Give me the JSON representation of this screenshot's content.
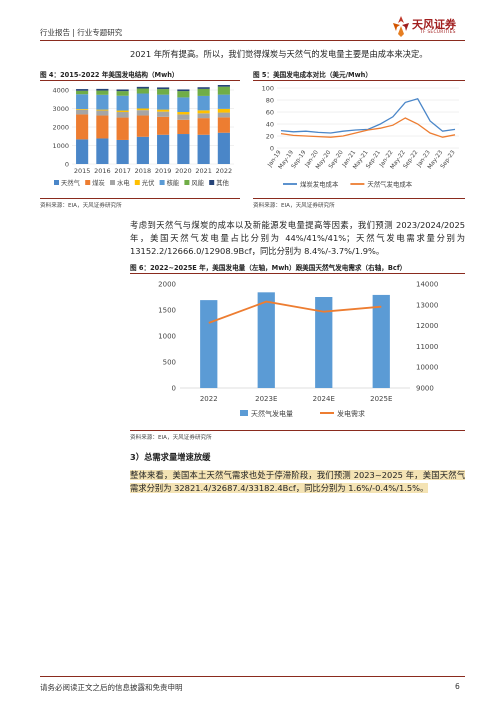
{
  "header": {
    "left": "行业报告 | 行业专题研究",
    "logo_text": "天风证券",
    "logo_sub": "TF SECURITIES"
  },
  "intro_line": "2021 年所有提高。所以，我们觉得煤炭与天然气的发电量主要是由成本来决定。",
  "fig4": {
    "title": "图 4：2015-2022 年美国发电结构（Mwh）",
    "source": "资料来源：EIA，天风证券研究所"
  },
  "fig5": {
    "title": "图 5：美国发电成本对比（美元/Mwh）",
    "source": "资料来源：EIA，天风证券研究所"
  },
  "para2": "考虑到天然气与煤炭的成本以及新能源发电量提高等因素，我们预测 2023/2024/2025 年，美国天然气发电量占比分别为 44%/41%/41%；天然气发电需求量分别为 13152.2/12666.0/12908.9Bcf，同比分别为 8.4%/-3.7%/1.9%。",
  "fig6": {
    "title": "图 6：2022~2025E 年，美国发电量（左轴，Mwh）跟美国天然气发电需求（右轴，Bcf）",
    "source": "资料来源：EIA，天风证券研究所"
  },
  "section3": {
    "heading": "3）总需求量增速放缓",
    "text_plain": "整体来看，美国本土天然气需求也处于停滞阶段，我们预测 2023~2025 年，美国天然气需求分别为 ",
    "text_highlight": "32821.4/32687.4/33182.4Bcf，同比分别为 1.6%/-0.4%/1.5%。"
  },
  "footer": {
    "disclaimer": "请务必阅读正文之后的信息披露和免责申明",
    "page": "6"
  },
  "colors": {
    "coal": "#4a86c8",
    "gas": "#ed7d31",
    "hydro": "#a5a5a5",
    "solar": "#ffc000",
    "nuclear": "#5b9bd5",
    "wind": "#70ad47",
    "other": "#264478",
    "rule": "#8a2b1e"
  },
  "chart_data": [
    {
      "type": "bar",
      "stacked": true,
      "categories": [
        "2015",
        "2016",
        "2017",
        "2018",
        "2019",
        "2020",
        "2021",
        "2022"
      ],
      "ylim": [
        0,
        4000
      ],
      "yticks": [
        0,
        1000,
        2000,
        3000,
        4000
      ],
      "series": [
        {
          "name": "天然气",
          "color": "#4a86c8",
          "values": [
            1330,
            1380,
            1300,
            1470,
            1580,
            1620,
            1580,
            1690
          ]
        },
        {
          "name": "煤炭",
          "color": "#ed7d31",
          "values": [
            1350,
            1240,
            1210,
            1150,
            970,
            770,
            900,
            830
          ]
        },
        {
          "name": "水电",
          "color": "#a5a5a5",
          "values": [
            250,
            270,
            300,
            290,
            280,
            290,
            260,
            260
          ]
        },
        {
          "name": "光伏",
          "color": "#ffc000",
          "values": [
            40,
            50,
            80,
            90,
            110,
            130,
            160,
            200
          ]
        },
        {
          "name": "核能",
          "color": "#5b9bd5",
          "values": [
            800,
            800,
            800,
            810,
            810,
            790,
            780,
            770
          ]
        },
        {
          "name": "风能",
          "color": "#70ad47",
          "values": [
            190,
            230,
            250,
            270,
            300,
            340,
            380,
            430
          ]
        },
        {
          "name": "其他",
          "color": "#264478",
          "values": [
            90,
            90,
            90,
            90,
            90,
            90,
            90,
            90
          ]
        }
      ],
      "legend_position": "bottom"
    },
    {
      "type": "line",
      "x": [
        "Jan-19",
        "May-19",
        "Sep-19",
        "Jan-20",
        "May-20",
        "Sep-20",
        "Jan-21",
        "May-21",
        "Sep-21",
        "Jan-22",
        "May-22",
        "Sep-22",
        "Jan-23",
        "May-23",
        "Sep-23"
      ],
      "ylim": [
        0,
        100
      ],
      "yticks": [
        0,
        20,
        40,
        60,
        80,
        100
      ],
      "series": [
        {
          "name": "煤炭发电成本",
          "color": "#4a86c8",
          "values": [
            29,
            27,
            28,
            26,
            25,
            28,
            30,
            31,
            40,
            52,
            76,
            82,
            45,
            28,
            31
          ]
        },
        {
          "name": "天然气发电成本",
          "color": "#ed7d31",
          "values": [
            24,
            21,
            20,
            19,
            18,
            20,
            25,
            30,
            33,
            38,
            50,
            40,
            25,
            18,
            22
          ]
        }
      ],
      "legend_position": "bottom"
    },
    {
      "type": "bar",
      "categories": [
        "2022",
        "2023E",
        "2024E",
        "2025E"
      ],
      "ylim": [
        0,
        2000
      ],
      "yticks": [
        0,
        500,
        1000,
        1500,
        2000
      ],
      "y2lim": [
        9000,
        14000
      ],
      "y2ticks": [
        9000,
        10000,
        11000,
        12000,
        13000,
        14000
      ],
      "series": [
        {
          "name": "天然气发电量",
          "type": "bar",
          "axis": "left",
          "color": "#5b9bd5",
          "values": [
            1690,
            1840,
            1750,
            1790
          ]
        },
        {
          "name": "发电需求",
          "type": "line",
          "axis": "right",
          "color": "#ed7d31",
          "values": [
            12130,
            13152.2,
            12666.0,
            12908.9
          ]
        }
      ],
      "legend_position": "bottom"
    }
  ]
}
